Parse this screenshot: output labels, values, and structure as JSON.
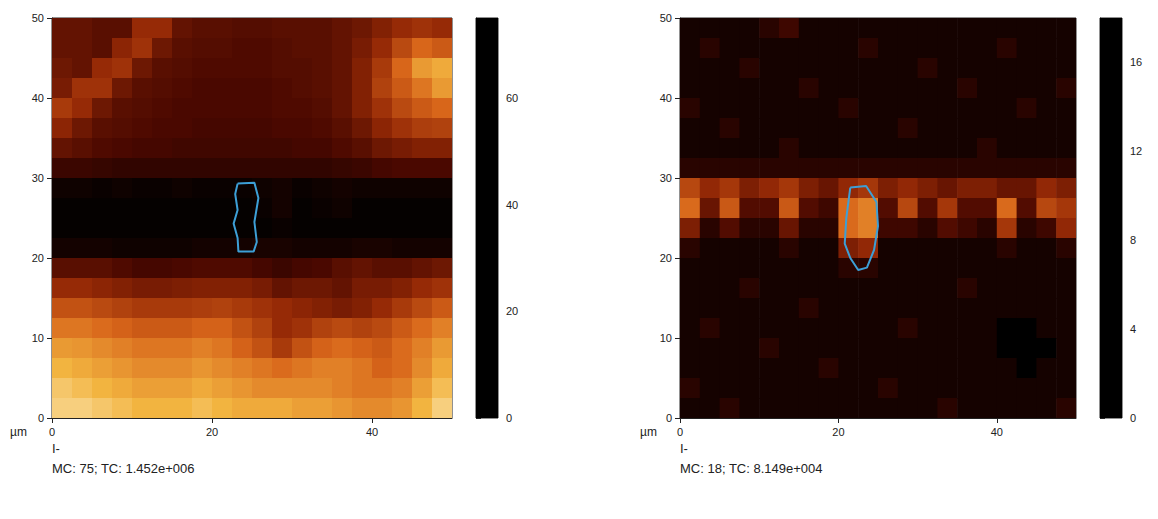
{
  "chart_data": [
    {
      "type": "heatmap",
      "axis_unit": "µm",
      "signal": "I-",
      "caption": "MC: 75; TC: 1.452e+006",
      "xlim": [
        0,
        50
      ],
      "xticks": [
        0,
        20,
        40
      ],
      "ylim": [
        0,
        50
      ],
      "yticks": [
        0,
        10,
        20,
        30,
        40,
        50
      ],
      "colorbar": {
        "range": [
          0,
          75
        ],
        "ticks": [
          0,
          20,
          40,
          60
        ]
      },
      "x": [
        1.25,
        3.75,
        6.25,
        8.75,
        11.25,
        13.75,
        16.25,
        18.75,
        21.25,
        23.75,
        26.25,
        28.75,
        31.25,
        33.75,
        36.25,
        38.75,
        41.25,
        43.75,
        46.25,
        48.75
      ],
      "y": [
        48.75,
        46.25,
        43.75,
        41.25,
        38.75,
        36.25,
        33.75,
        31.25,
        28.75,
        26.25,
        23.75,
        21.25,
        18.75,
        16.25,
        13.75,
        11.25,
        8.75,
        6.25,
        3.75,
        1.25
      ],
      "cells": [
        [
          20,
          20,
          18,
          18,
          30,
          30,
          20,
          18,
          18,
          17,
          17,
          18,
          18,
          18,
          20,
          22,
          26,
          30,
          32,
          30
        ],
        [
          20,
          20,
          18,
          28,
          32,
          22,
          18,
          17,
          17,
          16,
          16,
          17,
          18,
          18,
          20,
          24,
          30,
          38,
          45,
          42
        ],
        [
          22,
          20,
          30,
          32,
          22,
          18,
          17,
          16,
          16,
          16,
          16,
          17,
          17,
          18,
          20,
          26,
          34,
          45,
          55,
          58
        ],
        [
          24,
          32,
          32,
          22,
          18,
          17,
          16,
          15,
          15,
          15,
          15,
          16,
          17,
          18,
          20,
          26,
          36,
          42,
          48,
          55
        ],
        [
          34,
          30,
          22,
          18,
          17,
          16,
          15,
          15,
          15,
          15,
          15,
          16,
          16,
          17,
          20,
          26,
          32,
          38,
          42,
          45
        ],
        [
          28,
          22,
          18,
          17,
          16,
          15,
          15,
          14,
          14,
          14,
          14,
          15,
          15,
          16,
          18,
          22,
          28,
          32,
          35,
          36
        ],
        [
          20,
          18,
          16,
          15,
          14,
          14,
          13,
          13,
          13,
          13,
          13,
          13,
          14,
          14,
          16,
          18,
          22,
          24,
          26,
          26
        ],
        [
          12,
          12,
          11,
          10,
          10,
          10,
          10,
          10,
          10,
          10,
          10,
          10,
          10,
          10,
          11,
          12,
          14,
          15,
          15,
          15
        ],
        [
          3,
          3,
          2,
          3,
          2,
          2,
          3,
          2,
          2,
          2,
          3,
          4,
          2,
          3,
          4,
          3,
          3,
          3,
          3,
          3
        ],
        [
          1,
          1,
          1,
          1,
          1,
          1,
          1,
          1,
          1,
          1,
          2,
          4,
          1,
          2,
          3,
          1,
          1,
          1,
          1,
          1
        ],
        [
          1,
          1,
          1,
          1,
          1,
          1,
          1,
          1,
          1,
          1,
          1,
          2,
          1,
          1,
          1,
          1,
          1,
          1,
          1,
          1
        ],
        [
          4,
          4,
          4,
          3,
          3,
          3,
          3,
          4,
          4,
          4,
          5,
          5,
          4,
          4,
          4,
          5,
          5,
          4,
          4,
          4
        ],
        [
          18,
          18,
          18,
          16,
          14,
          14,
          15,
          16,
          16,
          16,
          14,
          12,
          14,
          15,
          18,
          20,
          18,
          18,
          20,
          22
        ],
        [
          30,
          30,
          28,
          26,
          24,
          24,
          25,
          26,
          26,
          26,
          24,
          20,
          22,
          22,
          20,
          24,
          24,
          26,
          30,
          32
        ],
        [
          40,
          40,
          38,
          36,
          34,
          34,
          34,
          35,
          36,
          34,
          32,
          30,
          28,
          26,
          24,
          26,
          30,
          34,
          38,
          42
        ],
        [
          48,
          48,
          46,
          44,
          42,
          42,
          42,
          44,
          44,
          40,
          36,
          30,
          32,
          36,
          38,
          36,
          38,
          42,
          46,
          50
        ],
        [
          55,
          54,
          52,
          50,
          48,
          48,
          48,
          50,
          48,
          44,
          40,
          34,
          40,
          44,
          46,
          44,
          42,
          46,
          50,
          55
        ],
        [
          60,
          58,
          56,
          54,
          52,
          52,
          52,
          54,
          52,
          50,
          48,
          46,
          48,
          50,
          50,
          48,
          44,
          46,
          52,
          58
        ],
        [
          64,
          62,
          60,
          58,
          56,
          56,
          56,
          58,
          56,
          54,
          52,
          52,
          52,
          52,
          50,
          48,
          48,
          50,
          56,
          62
        ],
        [
          66,
          66,
          64,
          62,
          60,
          60,
          60,
          62,
          60,
          58,
          58,
          58,
          56,
          56,
          54,
          52,
          52,
          54,
          60,
          66
        ]
      ],
      "roi": {
        "color": "#3d9fd6",
        "points": [
          [
            23.2,
            29.3
          ],
          [
            25.3,
            29.4
          ],
          [
            25.8,
            27.5
          ],
          [
            25.3,
            24.5
          ],
          [
            25.6,
            22.0
          ],
          [
            25.2,
            20.8
          ],
          [
            23.3,
            20.8
          ],
          [
            23.2,
            22.5
          ],
          [
            22.7,
            24.3
          ],
          [
            23.2,
            26.0
          ],
          [
            22.9,
            28.0
          ]
        ]
      }
    },
    {
      "type": "heatmap",
      "axis_unit": "µm",
      "signal": "I-",
      "caption": "MC: 18; TC: 8.149e+004",
      "xlim": [
        0,
        50
      ],
      "xticks": [
        0,
        20,
        40
      ],
      "ylim": [
        0,
        50
      ],
      "yticks": [
        0,
        10,
        20,
        30,
        40,
        50
      ],
      "colorbar": {
        "range": [
          0,
          18
        ],
        "ticks": [
          0,
          4,
          8,
          12,
          16
        ]
      },
      "x": [
        1.25,
        3.75,
        6.25,
        8.75,
        11.25,
        13.75,
        16.25,
        18.75,
        21.25,
        23.75,
        26.25,
        28.75,
        31.25,
        33.75,
        36.25,
        38.75,
        41.25,
        43.75,
        46.25,
        48.75
      ],
      "y": [
        48.75,
        46.25,
        43.75,
        41.25,
        38.75,
        36.25,
        33.75,
        31.25,
        28.75,
        26.25,
        23.75,
        21.25,
        18.75,
        16.25,
        13.75,
        11.25,
        8.75,
        6.25,
        3.75,
        1.25
      ],
      "cells": [
        [
          1,
          1,
          1,
          1,
          2,
          3,
          1,
          1,
          1,
          1,
          1,
          1,
          1,
          1,
          1,
          1,
          1,
          1,
          1,
          1
        ],
        [
          1,
          2,
          1,
          1,
          1,
          1,
          1,
          1,
          1,
          2,
          1,
          1,
          1,
          1,
          1,
          1,
          2,
          1,
          1,
          1
        ],
        [
          1,
          1,
          1,
          2,
          1,
          1,
          1,
          1,
          1,
          1,
          1,
          1,
          2,
          1,
          1,
          1,
          1,
          1,
          1,
          1
        ],
        [
          1,
          1,
          1,
          1,
          1,
          1,
          2,
          1,
          1,
          1,
          1,
          1,
          1,
          1,
          2,
          1,
          1,
          1,
          1,
          2
        ],
        [
          2,
          1,
          1,
          1,
          1,
          1,
          1,
          1,
          2,
          1,
          1,
          1,
          1,
          1,
          1,
          1,
          1,
          2,
          1,
          1
        ],
        [
          1,
          1,
          2,
          1,
          1,
          1,
          1,
          1,
          1,
          1,
          1,
          2,
          1,
          1,
          1,
          1,
          1,
          1,
          1,
          1
        ],
        [
          1,
          1,
          1,
          1,
          1,
          2,
          1,
          1,
          1,
          1,
          1,
          1,
          1,
          1,
          1,
          2,
          1,
          1,
          1,
          1
        ],
        [
          2,
          2,
          2,
          2,
          2,
          2,
          2,
          2,
          2,
          2,
          2,
          2,
          2,
          2,
          2,
          2,
          2,
          2,
          2,
          2
        ],
        [
          9,
          7,
          8,
          6,
          7,
          8,
          6,
          5,
          7,
          8,
          6,
          7,
          6,
          5,
          6,
          6,
          5,
          5,
          7,
          6
        ],
        [
          11,
          5,
          10,
          4,
          4,
          10,
          4,
          3,
          11,
          12,
          4,
          9,
          4,
          8,
          4,
          4,
          11,
          4,
          9,
          8
        ],
        [
          6,
          2,
          4,
          2,
          2,
          5,
          2,
          2,
          11,
          12,
          3,
          3,
          2,
          4,
          3,
          2,
          8,
          2,
          3,
          7
        ],
        [
          2,
          1,
          1,
          1,
          1,
          2,
          1,
          1,
          6,
          7,
          1,
          1,
          1,
          1,
          1,
          1,
          2,
          1,
          1,
          2
        ],
        [
          1,
          1,
          1,
          1,
          1,
          1,
          1,
          1,
          2,
          2,
          1,
          1,
          1,
          1,
          1,
          1,
          1,
          1,
          1,
          1
        ],
        [
          1,
          1,
          1,
          2,
          1,
          1,
          1,
          1,
          1,
          1,
          1,
          1,
          1,
          1,
          2,
          1,
          1,
          1,
          1,
          1
        ],
        [
          1,
          1,
          1,
          1,
          1,
          1,
          2,
          1,
          1,
          1,
          1,
          1,
          1,
          1,
          1,
          1,
          1,
          1,
          1,
          1
        ],
        [
          1,
          2,
          1,
          1,
          1,
          1,
          1,
          1,
          1,
          1,
          1,
          2,
          1,
          1,
          1,
          1,
          0,
          0,
          1,
          1
        ],
        [
          1,
          1,
          1,
          1,
          2,
          1,
          1,
          1,
          1,
          1,
          1,
          1,
          1,
          1,
          1,
          1,
          0,
          0,
          0,
          1
        ],
        [
          1,
          1,
          1,
          1,
          1,
          1,
          1,
          2,
          1,
          1,
          1,
          1,
          1,
          1,
          1,
          1,
          1,
          0,
          1,
          1
        ],
        [
          2,
          1,
          1,
          1,
          1,
          1,
          1,
          1,
          1,
          1,
          2,
          1,
          1,
          1,
          1,
          1,
          1,
          1,
          1,
          1
        ],
        [
          1,
          1,
          2,
          1,
          1,
          1,
          1,
          1,
          1,
          1,
          1,
          1,
          1,
          2,
          1,
          1,
          1,
          1,
          1,
          2
        ]
      ],
      "roi": {
        "color": "#3d9fd6",
        "points": [
          [
            21.5,
            28.8
          ],
          [
            23.5,
            29.0
          ],
          [
            24.8,
            27.0
          ],
          [
            25.0,
            24.0
          ],
          [
            24.5,
            21.0
          ],
          [
            23.6,
            18.8
          ],
          [
            22.5,
            18.5
          ],
          [
            21.5,
            20.0
          ],
          [
            20.8,
            21.8
          ],
          [
            21.0,
            25.0
          ],
          [
            21.3,
            27.3
          ]
        ]
      }
    }
  ]
}
